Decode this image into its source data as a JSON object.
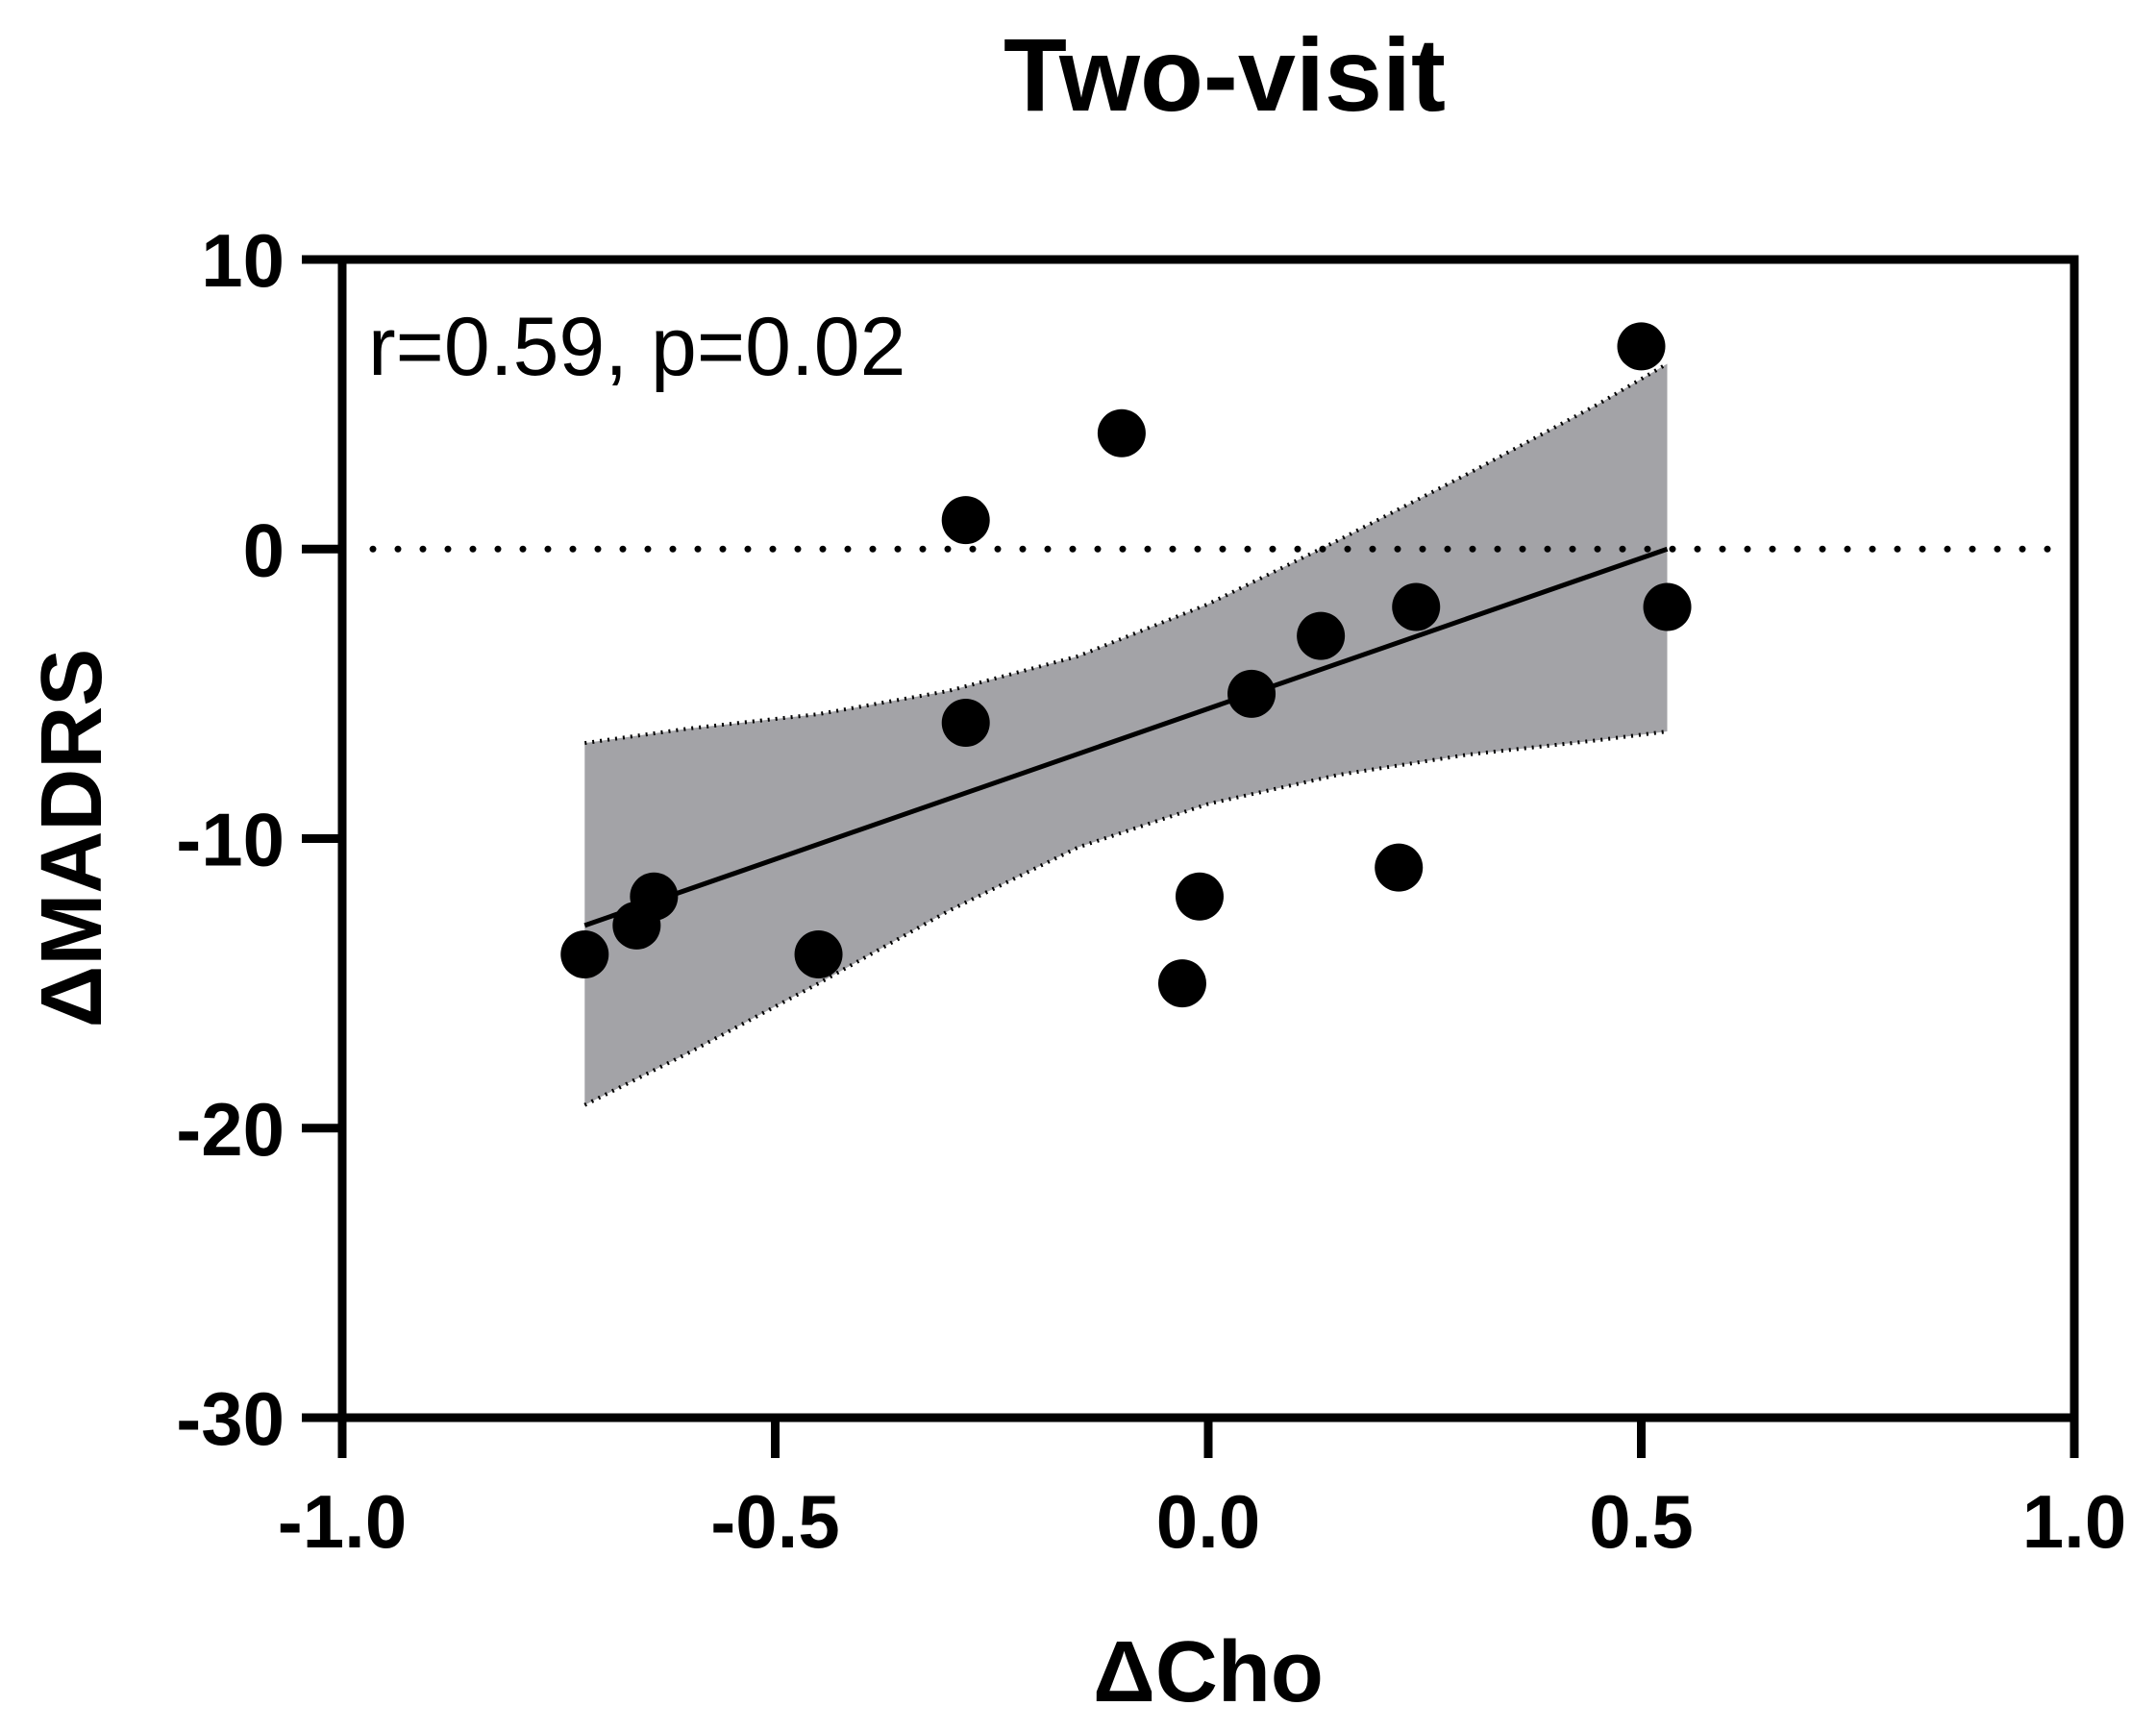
{
  "chart_data": {
    "type": "scatter",
    "title": "Two-visit",
    "xlabel": "ΔCho",
    "ylabel": "ΔMADRS",
    "xlim": [
      -1.0,
      1.0
    ],
    "ylim": [
      -30,
      10
    ],
    "xticks": [
      -1.0,
      -0.5,
      0.0,
      0.5,
      1.0
    ],
    "xtick_labels": [
      "-1.0",
      "-0.5",
      "0.0",
      "0.5",
      "1.0"
    ],
    "yticks": [
      10,
      0,
      -10,
      -20,
      -30
    ],
    "ytick_labels": [
      "10",
      "0",
      "-10",
      "-20",
      "-30"
    ],
    "annotation": "r=0.59, p=0.02",
    "reference_line_y": 0,
    "points": [
      {
        "x": -0.72,
        "y": -14
      },
      {
        "x": -0.66,
        "y": -13
      },
      {
        "x": -0.64,
        "y": -12
      },
      {
        "x": -0.45,
        "y": -14
      },
      {
        "x": -0.28,
        "y": -6
      },
      {
        "x": -0.28,
        "y": 1
      },
      {
        "x": -0.1,
        "y": 4
      },
      {
        "x": -0.03,
        "y": -15
      },
      {
        "x": -0.01,
        "y": -12
      },
      {
        "x": 0.05,
        "y": -5
      },
      {
        "x": 0.13,
        "y": -3
      },
      {
        "x": 0.22,
        "y": -11
      },
      {
        "x": 0.24,
        "y": -2
      },
      {
        "x": 0.5,
        "y": 7
      },
      {
        "x": 0.53,
        "y": -2
      }
    ],
    "regression": {
      "x_start": -0.72,
      "x_end": 0.53,
      "y_start": -13.0,
      "y_end": 0.0
    },
    "confidence_band": {
      "x": [
        -0.72,
        -0.6,
        -0.45,
        -0.3,
        -0.15,
        0.0,
        0.15,
        0.3,
        0.45,
        0.53
      ],
      "upper": [
        -6.7,
        -6.2,
        -5.7,
        -4.9,
        -3.7,
        -1.9,
        0.3,
        2.6,
        5.0,
        6.4
      ],
      "lower": [
        -19.2,
        -17.4,
        -15.0,
        -12.5,
        -10.3,
        -8.8,
        -7.8,
        -7.1,
        -6.6,
        -6.3
      ]
    },
    "colors": {
      "band": "#a3a3a7",
      "point": "#000000",
      "axis": "#000000"
    }
  }
}
